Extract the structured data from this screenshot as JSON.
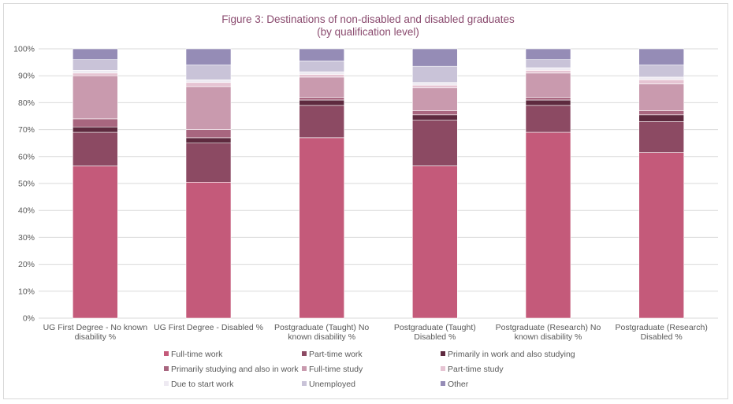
{
  "chart_data": {
    "type": "bar",
    "stacked": true,
    "title": "Figure 3: Destinations of non-disabled and disabled graduates",
    "subtitle": "(by qualification level)",
    "xlabel": "",
    "ylabel": "",
    "ylim": [
      0,
      100
    ],
    "y_ticks": [
      "0%",
      "10%",
      "20%",
      "30%",
      "40%",
      "50%",
      "60%",
      "70%",
      "80%",
      "90%",
      "100%"
    ],
    "y_tick_values": [
      0,
      10,
      20,
      30,
      40,
      50,
      60,
      70,
      80,
      90,
      100
    ],
    "grid": true,
    "legend_position": "bottom",
    "categories": [
      [
        "UG First Degree - No known",
        "disability %"
      ],
      [
        "UG First Degree - Disabled %"
      ],
      [
        "Postgraduate (Taught) No",
        "known disability %"
      ],
      [
        "Postgraduate (Taught)",
        "Disabled %"
      ],
      [
        "Postgraduate (Research) No",
        "known disability %"
      ],
      [
        "Postgraduate (Research)",
        "Disabled %"
      ]
    ],
    "series": [
      {
        "name": "Full-time work",
        "color": "#c45a7a",
        "values": [
          56.5,
          50.5,
          67.0,
          56.5,
          69.0,
          61.5
        ]
      },
      {
        "name": "Part-time work",
        "color": "#8c4a63",
        "values": [
          12.5,
          14.5,
          12.0,
          17.0,
          10.0,
          11.5
        ]
      },
      {
        "name": "Primarily in work and also studying",
        "color": "#5e2a3f",
        "values": [
          2.0,
          2.0,
          2.0,
          2.0,
          2.0,
          2.5
        ]
      },
      {
        "name": "Primarily studying and also in work",
        "color": "#a8667f",
        "values": [
          3.0,
          3.0,
          1.0,
          1.5,
          1.0,
          1.5
        ]
      },
      {
        "name": "Full-time study",
        "color": "#c99aae",
        "values": [
          16.0,
          16.0,
          7.5,
          8.5,
          9.0,
          10.0
        ]
      },
      {
        "name": "Part-time study",
        "color": "#e6c4d3",
        "values": [
          1.0,
          1.5,
          1.0,
          1.0,
          1.0,
          1.5
        ]
      },
      {
        "name": "Due to start work",
        "color": "#eeeaf2",
        "values": [
          1.0,
          1.0,
          1.0,
          1.0,
          1.0,
          1.0
        ]
      },
      {
        "name": "Unemployed",
        "color": "#c9c3d8",
        "values": [
          4.0,
          5.5,
          4.0,
          6.0,
          3.0,
          4.5
        ]
      },
      {
        "name": "Other",
        "color": "#958cb6",
        "values": [
          4.0,
          6.0,
          4.5,
          6.5,
          4.0,
          6.0
        ]
      }
    ]
  },
  "colors": {
    "gridline": "#d9d9d9",
    "axis_text": "#595959",
    "title": "#8a4a6e"
  }
}
